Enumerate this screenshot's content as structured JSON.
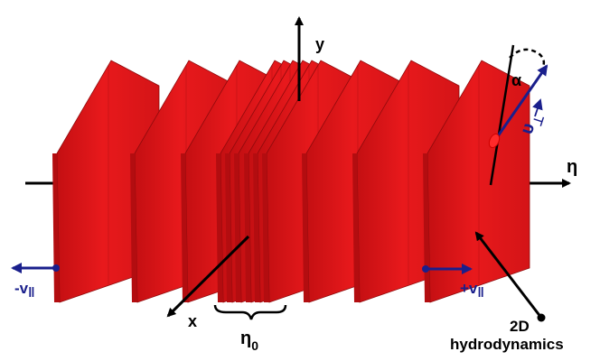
{
  "labels": {
    "y_axis": "y",
    "x_axis": "x",
    "eta_axis": "η",
    "alpha": "α",
    "v_perp_main": "υ",
    "v_perp_sub": "⊥",
    "v_left_sign": "-v",
    "v_right_sign": "+v",
    "v_par_sub": "‖",
    "n0_main": "η",
    "n0_sub": "0",
    "hydro_line1": "2D",
    "hydro_line2": "hydrodynamics"
  },
  "colors": {
    "slab_front": "#e8191c",
    "slab_side": "#b30d10",
    "slab_dark": "#8f0a0c",
    "velocity_arrow": "#1a1f8c",
    "axis": "#000000"
  }
}
